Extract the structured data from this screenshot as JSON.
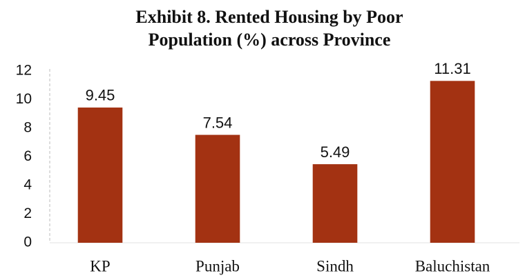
{
  "chart_data": {
    "type": "bar",
    "title": "Exhibit 8. Rented Housing by Poor Population (%) across Province",
    "categories": [
      "KP",
      "Punjab",
      "Sindh",
      "Baluchistan"
    ],
    "values": [
      9.45,
      7.54,
      5.49,
      11.31
    ],
    "color": "#a33212",
    "ylim": [
      0,
      12
    ],
    "yticks": [
      0,
      2,
      4,
      6,
      8,
      10,
      12
    ],
    "grid": false
  }
}
